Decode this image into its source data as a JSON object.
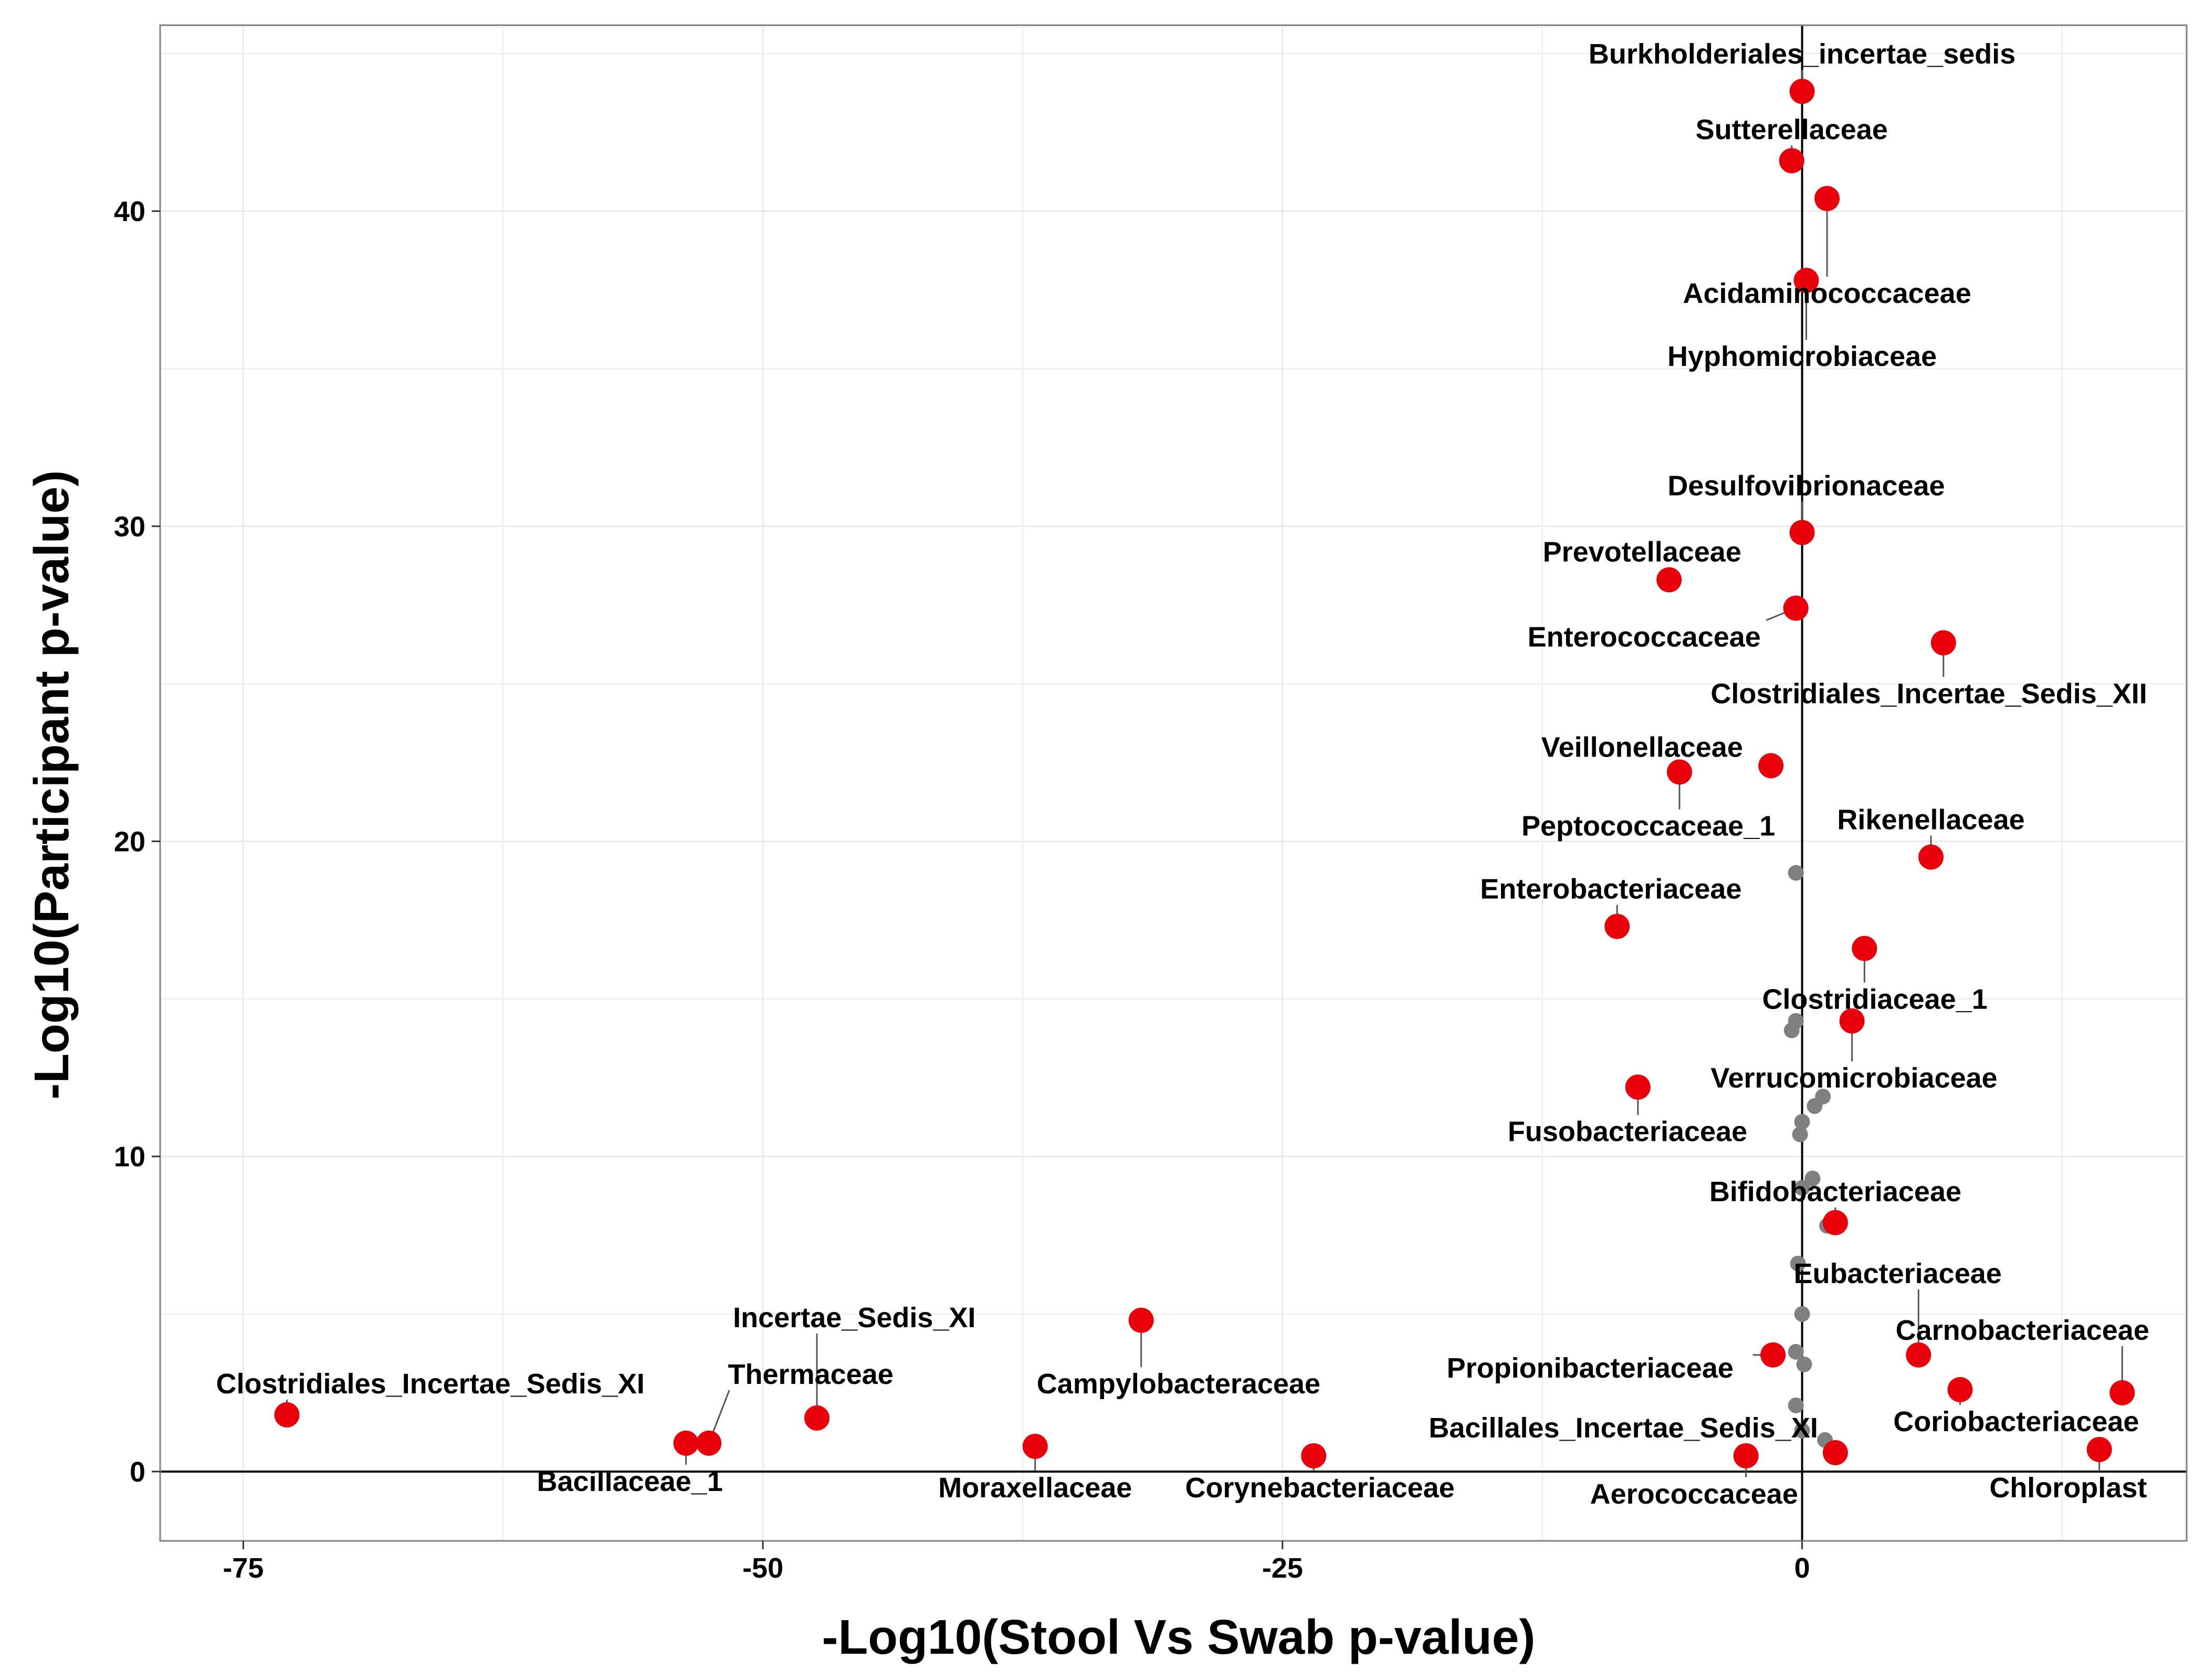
{
  "chart_data": {
    "type": "scatter",
    "xlabel": "-Log10(Stool Vs Swab p-value)",
    "ylabel": "-Log10(Participant p-value)",
    "xlim": [
      -79,
      18.5
    ],
    "ylim": [
      -2.2,
      45.9
    ],
    "x_ticks": [
      -75,
      -50,
      -25,
      0
    ],
    "y_ticks": [
      0,
      10,
      20,
      30,
      40
    ],
    "x_tick_labels": [
      "-75",
      "-50",
      "-25",
      "0"
    ],
    "y_tick_labels": [
      "0",
      "10",
      "20",
      "30",
      "40"
    ],
    "grid": true,
    "reference_lines": {
      "x": 0,
      "y": 0
    },
    "colors": {
      "significant": "#e8000b",
      "nonsignificant": "#808080",
      "grid": "#ebebeb",
      "axis": "#000000"
    },
    "labeled_points": [
      {
        "label": "Burkholderiales_incertae_sedis",
        "x": 0.0,
        "y": 43.8,
        "lx": 0.0,
        "ly": 45.0
      },
      {
        "label": "Sutterellaceae",
        "x": -0.5,
        "y": 41.6,
        "lx": -0.5,
        "ly": 42.6
      },
      {
        "label": "Acidaminococcaceae",
        "x": 1.2,
        "y": 40.4,
        "lx": 1.2,
        "ly": 37.4
      },
      {
        "label": "Hyphomicrobiaceae",
        "x": 0.2,
        "y": 37.8,
        "lx": 0.0,
        "ly": 35.4
      },
      {
        "label": "Desulfovibrionaceae",
        "x": 0.0,
        "y": 29.8,
        "lx": 0.2,
        "ly": 31.3
      },
      {
        "label": "Prevotellaceae",
        "x": -6.4,
        "y": 28.3,
        "lx": -7.7,
        "ly": 29.2
      },
      {
        "label": "Enterococcaceae",
        "x": -0.3,
        "y": 27.4,
        "lx": -7.6,
        "ly": 26.5
      },
      {
        "label": "Clostridiales_Incertae_Sedis_XII",
        "x": 6.8,
        "y": 26.3,
        "lx": 6.1,
        "ly": 24.7
      },
      {
        "label": "Veillonellaceae",
        "x": -1.5,
        "y": 22.4,
        "lx": -7.7,
        "ly": 23.0
      },
      {
        "label": "Peptococcaceae_1",
        "x": -5.9,
        "y": 22.2,
        "lx": -7.4,
        "ly": 20.5
      },
      {
        "label": "Rikenellaceae",
        "x": 6.2,
        "y": 19.5,
        "lx": 6.2,
        "ly": 20.7
      },
      {
        "label": "Enterobacteriaceae",
        "x": -8.9,
        "y": 17.3,
        "lx": -9.2,
        "ly": 18.5
      },
      {
        "label": "Clostridiaceae_1",
        "x": 3.0,
        "y": 16.6,
        "lx": 3.5,
        "ly": 15.0
      },
      {
        "label": "Verrucomicrobiaceae",
        "x": 2.4,
        "y": 14.3,
        "lx": 2.5,
        "ly": 12.5
      },
      {
        "label": "Fusobacteriaceae",
        "x": -7.9,
        "y": 12.2,
        "lx": -8.4,
        "ly": 10.8
      },
      {
        "label": "Bifidobacteriaceae",
        "x": 1.6,
        "y": 7.9,
        "lx": 1.6,
        "ly": 8.9
      },
      {
        "label": "Eubacteriaceae",
        "x": 5.6,
        "y": 3.7,
        "lx": 4.6,
        "ly": 6.3
      },
      {
        "label": "Carnobacteriaceae",
        "x": 15.4,
        "y": 2.5,
        "lx": 10.6,
        "ly": 4.5
      },
      {
        "label": "Propionibacteriaceae",
        "x": -1.4,
        "y": 3.7,
        "lx": -10.2,
        "ly": 3.3
      },
      {
        "label": "Coriobacteriaceae",
        "x": 7.6,
        "y": 2.6,
        "lx": 10.3,
        "ly": 1.6
      },
      {
        "label": "Bacillales_Incertae_Sedis_XI",
        "x": 1.6,
        "y": 0.6,
        "lx": -8.6,
        "ly": 1.4
      },
      {
        "label": "Aerococcaceae",
        "x": -2.7,
        "y": 0.5,
        "lx": -5.2,
        "ly": -0.7
      },
      {
        "label": "Chloroplast",
        "x": 14.3,
        "y": 0.7,
        "lx": 12.8,
        "ly": -0.5
      },
      {
        "label": "Clostridiales_Incertae_Sedis_XI",
        "x": -72.9,
        "y": 1.8,
        "lx": -66.0,
        "ly": 2.8
      },
      {
        "label": "Incertae_Sedis_XI",
        "x": -47.4,
        "y": 1.7,
        "lx": -45.6,
        "ly": 4.9
      },
      {
        "label": "Thermaceae",
        "x": -52.6,
        "y": 0.9,
        "lx": -47.7,
        "ly": 3.1
      },
      {
        "label": "Bacillaceae_1",
        "x": -53.7,
        "y": 0.9,
        "lx": -56.4,
        "ly": -0.3
      },
      {
        "label": "Campylobacteraceae",
        "x": -31.8,
        "y": 4.8,
        "lx": -30.0,
        "ly": 2.8
      },
      {
        "label": "Moraxellaceae",
        "x": -36.9,
        "y": 0.8,
        "lx": -36.9,
        "ly": -0.5
      },
      {
        "label": "Corynebacteriaceae",
        "x": -23.5,
        "y": 0.5,
        "lx": -23.2,
        "ly": -0.5
      }
    ],
    "gray_points": [
      [
        -0.3,
        19.0
      ],
      [
        -0.5,
        14.0
      ],
      [
        -0.3,
        14.3
      ],
      [
        1.0,
        11.9
      ],
      [
        0.6,
        11.6
      ],
      [
        0.0,
        11.1
      ],
      [
        -0.1,
        10.7
      ],
      [
        0.5,
        9.3
      ],
      [
        0.0,
        9.0
      ],
      [
        1.2,
        7.8
      ],
      [
        -0.2,
        6.6
      ],
      [
        0.0,
        5.0
      ],
      [
        -0.3,
        3.8
      ],
      [
        0.1,
        3.4
      ],
      [
        -0.3,
        2.1
      ],
      [
        0.0,
        1.3
      ],
      [
        1.1,
        1.0
      ]
    ]
  }
}
